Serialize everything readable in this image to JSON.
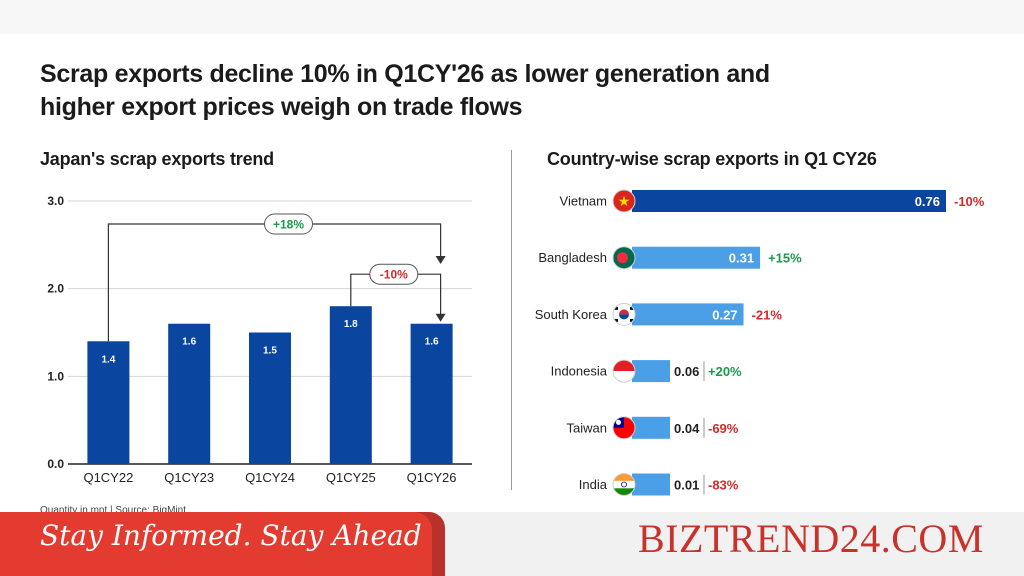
{
  "headline": "Scrap exports decline 10% in Q1CY'26 as lower generation and higher export prices weigh on trade flows",
  "footer": {
    "footnote": "Quantity in mnt  |  Source: BigMint",
    "tagline": "Stay Informed. Stay Ahead",
    "brand": "BIZTREND24.COM"
  },
  "colors": {
    "bar_dark": "#0a46a0",
    "bar_light": "#4a9fe6",
    "positive": "#1a9a4a",
    "negative": "#d42a2a"
  },
  "chart_data": [
    {
      "type": "bar",
      "title": "Japan's scrap exports trend",
      "categories": [
        "Q1CY22",
        "Q1CY23",
        "Q1CY24",
        "Q1CY25",
        "Q1CY26"
      ],
      "values": [
        1.4,
        1.6,
        1.5,
        1.8,
        1.6
      ],
      "data_labels": [
        "1.4",
        "1.6",
        "1.5",
        "1.8",
        "1.6"
      ],
      "ylim": [
        0,
        3.0
      ],
      "yticks": [
        "0.0",
        "1.0",
        "2.0",
        "3.0"
      ],
      "grid": true,
      "annotations": [
        {
          "label": "+18%",
          "from": "Q1CY22",
          "to": "Q1CY26",
          "sign": "positive"
        },
        {
          "label": "-10%",
          "from": "Q1CY25",
          "to": "Q1CY26",
          "sign": "negative"
        }
      ]
    },
    {
      "type": "bar",
      "orientation": "horizontal",
      "title": "Country-wise scrap exports in Q1 CY26",
      "categories": [
        "Vietnam",
        "Bangladesh",
        "South Korea",
        "Indonesia",
        "Taiwan",
        "India"
      ],
      "values": [
        0.76,
        0.31,
        0.27,
        0.06,
        0.04,
        0.01
      ],
      "data_labels": [
        "0.76",
        "0.31",
        "0.27",
        "0.06",
        "0.04",
        "0.01"
      ],
      "changes": [
        "-10%",
        "+15%",
        "-21%",
        "+20%",
        "-69%",
        "-83%"
      ],
      "change_signs": [
        "negative",
        "positive",
        "negative",
        "positive",
        "negative",
        "negative"
      ],
      "flag_icons": [
        "vietnam-flag-icon",
        "bangladesh-flag-icon",
        "south-korea-flag-icon",
        "indonesia-flag-icon",
        "taiwan-flag-icon",
        "india-flag-icon"
      ]
    }
  ]
}
